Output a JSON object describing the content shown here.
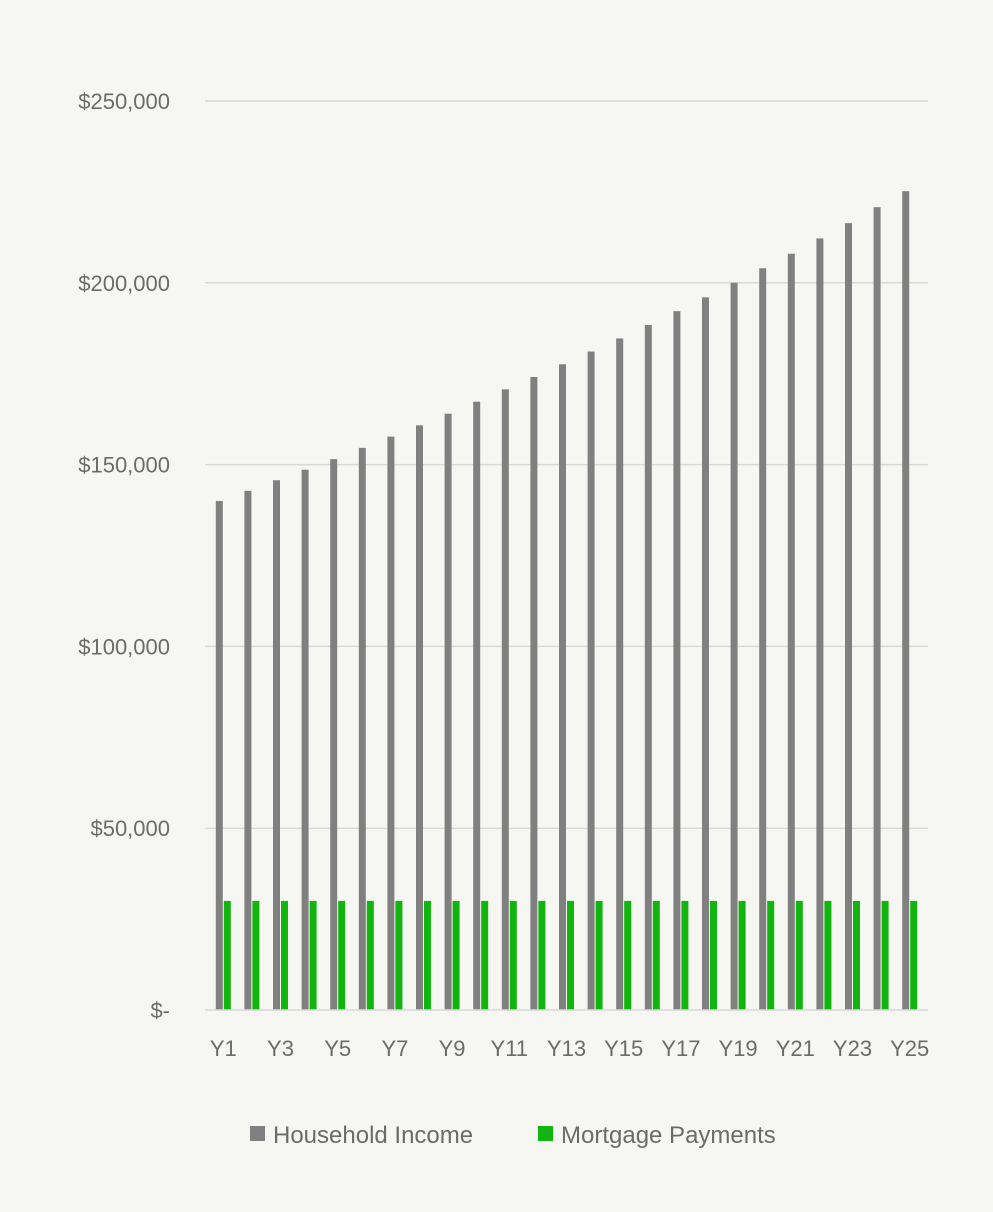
{
  "chart_data": {
    "type": "bar",
    "categories": [
      "Y1",
      "Y2",
      "Y3",
      "Y4",
      "Y5",
      "Y6",
      "Y7",
      "Y8",
      "Y9",
      "Y10",
      "Y11",
      "Y12",
      "Y13",
      "Y14",
      "Y15",
      "Y16",
      "Y17",
      "Y18",
      "Y19",
      "Y20",
      "Y21",
      "Y22",
      "Y23",
      "Y24",
      "Y25"
    ],
    "x_tick_labels": [
      "Y1",
      "Y3",
      "Y5",
      "Y7",
      "Y9",
      "Y11",
      "Y13",
      "Y15",
      "Y17",
      "Y19",
      "Y21",
      "Y23",
      "Y25"
    ],
    "series": [
      {
        "name": "Household Income",
        "color": "#808080",
        "values": [
          140000,
          142800,
          145700,
          148600,
          151500,
          154600,
          157700,
          160800,
          164000,
          167300,
          170700,
          174100,
          177600,
          181100,
          184700,
          188400,
          192200,
          196000,
          200000,
          204000,
          208000,
          212200,
          216400,
          220800,
          225200
        ]
      },
      {
        "name": "Mortgage Payments",
        "color": "#11b50e",
        "values": [
          30000,
          30000,
          30000,
          30000,
          30000,
          30000,
          30000,
          30000,
          30000,
          30000,
          30000,
          30000,
          30000,
          30000,
          30000,
          30000,
          30000,
          30000,
          30000,
          30000,
          30000,
          30000,
          30000,
          30000,
          30000
        ]
      }
    ],
    "y_ticks": [
      0,
      50000,
      100000,
      150000,
      200000,
      250000
    ],
    "y_tick_labels": [
      "$-",
      "$50,000",
      "$100,000",
      "$150,000",
      "$200,000",
      "$250,000"
    ],
    "ylim": [
      0,
      250000
    ],
    "grid": true,
    "legend_position": "bottom",
    "title": "",
    "xlabel": "",
    "ylabel": ""
  }
}
